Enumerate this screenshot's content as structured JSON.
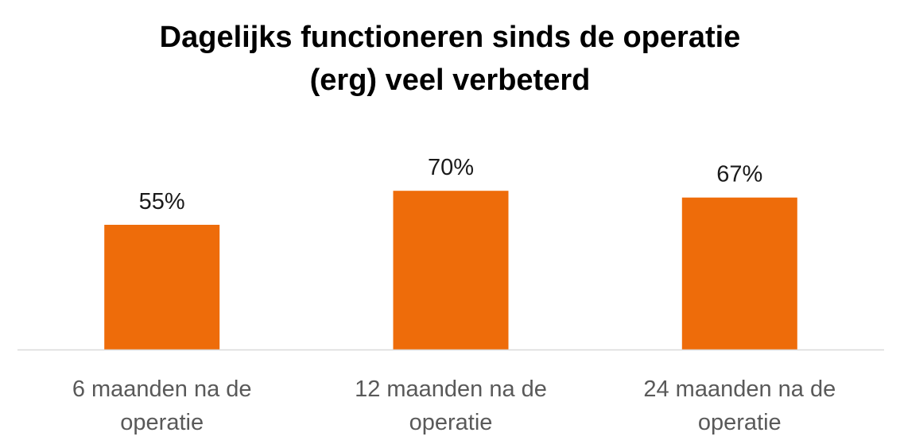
{
  "chart_data": {
    "type": "bar",
    "title_lines": [
      "Dagelijks functioneren sinds de operatie",
      "(erg) veel verbeterd"
    ],
    "categories": [
      [
        "6 maanden na de",
        "operatie"
      ],
      [
        "12 maanden na de",
        "operatie"
      ],
      [
        "24 maanden na de",
        "operatie"
      ]
    ],
    "values": [
      55,
      70,
      67
    ],
    "data_labels": [
      "55%",
      "70%",
      "67%"
    ],
    "ylim": [
      0,
      100
    ],
    "grid": false,
    "bar_color": "#EE6C0A",
    "axis_color": "#D9D9D9"
  }
}
